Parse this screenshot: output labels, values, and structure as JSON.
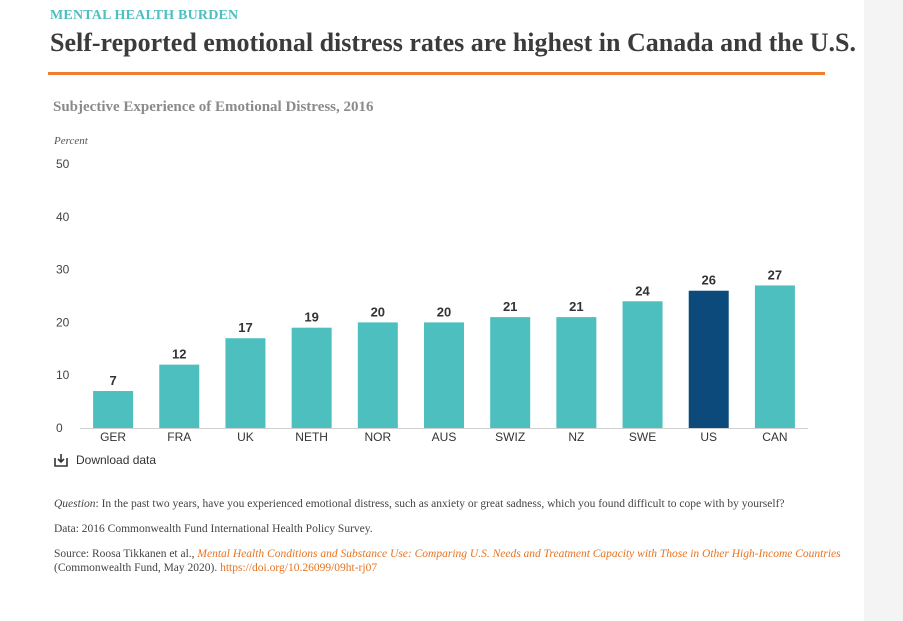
{
  "header": {
    "kicker": "MENTAL HEALTH BURDEN",
    "headline": "Self-reported emotional distress rates are highest in Canada and the U.S."
  },
  "colors": {
    "accent_rule": "#f07f2b",
    "bar": "#4dbfbf",
    "highlight_bar": "#0b4a7a",
    "kicker": "#4dbfbf"
  },
  "chart_data": {
    "type": "bar",
    "title": "Subjective Experience of Emotional Distress, 2016",
    "ylabel": "Percent",
    "xlabel": "",
    "ylim": [
      0,
      50
    ],
    "yticks": [
      "0",
      "10",
      "20",
      "30",
      "40",
      "50"
    ],
    "categories": [
      "GER",
      "FRA",
      "UK",
      "NETH",
      "NOR",
      "AUS",
      "SWIZ",
      "NZ",
      "SWE",
      "US",
      "CAN"
    ],
    "values": [
      7,
      12,
      17,
      19,
      20,
      20,
      21,
      21,
      24,
      26,
      27
    ],
    "value_labels": [
      "7",
      "12",
      "17",
      "19",
      "20",
      "20",
      "21",
      "21",
      "24",
      "26",
      "27"
    ],
    "highlight": "US",
    "grid": false,
    "legend": "none"
  },
  "download": {
    "label": "Download data",
    "icon": "download-icon"
  },
  "notes": {
    "question_label": "Question",
    "question_text": ": In the past two years, have you experienced emotional distress, such as anxiety or great sadness, which you found difficult to cope with by yourself?",
    "data_text": "Data: 2016 Commonwealth Fund International Health Policy Survey.",
    "source_prefix": "Source: Roosa Tikkanen et al., ",
    "source_title": "Mental Health Conditions and Substance Use: Comparing U.S. Needs and Treatment Capacity with Those in Other High-Income Countries",
    "source_suffix": " (Commonwealth Fund, May 2020). ",
    "source_doi": "https://doi.org/10.26099/09ht-rj07"
  }
}
